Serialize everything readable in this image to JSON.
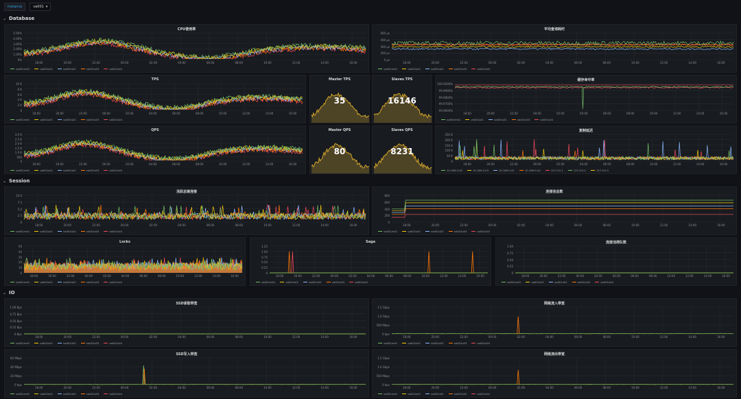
{
  "topbar": {
    "variable_label": "Instance",
    "variable_value": "va001"
  },
  "rows": [
    {
      "title": "Database",
      "top": 22
    },
    {
      "title": "Session",
      "top": 259
    },
    {
      "title": "IO",
      "top": 422
    }
  ],
  "series_colors": [
    "#73bf69",
    "#f2cc0c",
    "#8ab8ff",
    "#ff780a",
    "#f2495c"
  ],
  "x_ticks": [
    "18:00",
    "20:00",
    "22:00",
    "00:00",
    "02:00",
    "04:00",
    "06:00",
    "08:00",
    "10:00",
    "12:00",
    "14:00",
    "16:00"
  ],
  "panels": [
    {
      "id": "p1",
      "title": "CPU使用率",
      "x": 6,
      "y": 35,
      "w": 532,
      "h": 71,
      "kind": "graph",
      "shape": "wave",
      "y_ticks": [
        "5.00%",
        "4.00%",
        "3.00%",
        "2.00%",
        "1.00%",
        "0%"
      ],
      "legend": [
        "va001m01",
        "va001s01",
        "va001s02",
        "va001s03",
        "va001s04"
      ],
      "chart_data": {
        "type": "line",
        "x": [
          "18:00",
          "20:00",
          "22:00",
          "00:00",
          "02:00",
          "04:00",
          "06:00",
          "08:00",
          "10:00",
          "12:00",
          "14:00",
          "16:00"
        ],
        "ylim": [
          0,
          5
        ],
        "series": [
          {
            "name": "va001m01",
            "values": [
              2.1,
              2.3,
              2.6,
              2.7,
              1.5,
              0.7,
              0.5,
              0.9,
              1.6,
              2.0,
              1.9,
              2.0
            ]
          }
        ]
      }
    },
    {
      "id": "p2",
      "title": "平均查询耗时",
      "x": 542,
      "y": 35,
      "w": 532,
      "h": 71,
      "kind": "graph",
      "shape": "flatnoise",
      "y_ticks": [
        "600 µs",
        "400 µs",
        "300 µs",
        "200 µs",
        "0 µs"
      ],
      "legend": [
        "va001m01",
        "va001s01",
        "va001s02",
        "va001s03",
        "va001s04"
      ],
      "chart_data": {
        "type": "line",
        "ylim": [
          0,
          600
        ],
        "series": [
          {
            "name": "va001m01",
            "values": [
              400,
              420,
              390,
              410,
              400,
              395,
              405,
              410,
              400,
              415,
              400,
              405
            ]
          }
        ]
      }
    },
    {
      "id": "p3",
      "title": "TPS",
      "x": 6,
      "y": 109,
      "w": 440,
      "h": 71,
      "kind": "graph",
      "shape": "wave",
      "y_ticks": [
        "10 K",
        "8 K",
        "6 K",
        "4 K",
        "2 K",
        "0"
      ],
      "legend": [
        "va001m01",
        "va001s01",
        "va001s02",
        "va001s03",
        "va001s04"
      ],
      "chart_data": {
        "type": "line",
        "ylim": [
          0,
          10000
        ],
        "series": [
          {
            "name": "va001m01",
            "values": [
              4800,
              5600,
              6400,
              6200,
              3800,
              2100,
              1500,
              2300,
              3500,
              4400,
              4700,
              4900
            ]
          }
        ]
      }
    },
    {
      "id": "p4",
      "title": "Master TPS",
      "x": 451,
      "y": 109,
      "w": 88,
      "h": 71,
      "kind": "stat",
      "value": "35"
    },
    {
      "id": "p5",
      "title": "Slaves TPS",
      "x": 542,
      "y": 109,
      "w": 88,
      "h": 71,
      "kind": "stat",
      "value": "16146"
    },
    {
      "id": "p6",
      "title": "缓存命中率",
      "x": 634,
      "y": 109,
      "w": 440,
      "h": 71,
      "kind": "graph",
      "shape": "hit",
      "y_ticks": [
        "100.0000%",
        "99.9900%",
        "99.9800%",
        "99.9700%",
        "99.9600%"
      ],
      "legend": [
        "va001m01",
        "va001s01",
        "va001s02",
        "va001s03",
        "va001s04"
      ],
      "chart_data": {
        "type": "line",
        "ylim": [
          99.96,
          100
        ],
        "series": [
          {
            "name": "va001m01",
            "values": [
              99.998,
              99.998,
              99.998,
              99.998,
              99.998,
              99.998,
              99.998,
              99.998,
              99.998,
              99.998,
              99.998,
              99.998
            ]
          }
        ]
      }
    },
    {
      "id": "p7",
      "title": "QPS",
      "x": 6,
      "y": 183,
      "w": 440,
      "h": 71,
      "kind": "graph",
      "shape": "wave",
      "y_ticks": [
        "3.0 K",
        "2.5 K",
        "2.0 K",
        "1.5 K",
        "1.0 K",
        "500",
        "0"
      ],
      "legend": [
        "va001m01",
        "va001s01",
        "va001s02",
        "va001s03",
        "va001s04"
      ],
      "chart_data": {
        "type": "line",
        "ylim": [
          0,
          3000
        ],
        "series": [
          {
            "name": "va001m01",
            "values": [
              1400,
              1700,
              2000,
              1900,
              1100,
              500,
              300,
              600,
              1000,
              1300,
              1400,
              1500
            ]
          }
        ]
      }
    },
    {
      "id": "p8",
      "title": "Master QPS",
      "x": 451,
      "y": 183,
      "w": 88,
      "h": 71,
      "kind": "stat",
      "value": "80"
    },
    {
      "id": "p9",
      "title": "Slaves QPS",
      "x": 542,
      "y": 183,
      "w": 88,
      "h": 71,
      "kind": "stat",
      "value": "8231"
    },
    {
      "id": "p10",
      "title": "复制延迟",
      "x": 634,
      "y": 183,
      "w": 440,
      "h": 71,
      "kind": "graph",
      "shape": "spikes",
      "y_ticks": [
        "250 K",
        "200 K",
        "150 K",
        "100 K",
        "50 K",
        "0"
      ],
      "legend": [
        "10.189.0.45",
        "10.189.0.43",
        "10.189.0.41",
        "10.189.0.42",
        "127.0.0.1",
        "127.0.0.1",
        "127.0.0.1"
      ],
      "chart_data": {
        "type": "line",
        "ylim": [
          0,
          250000
        ],
        "series": [
          {
            "name": "10.189.0.45",
            "values": [
              10000,
              20000,
              180000,
              15000,
              12000,
              9000,
              16000,
              120000,
              14000,
              170000,
              11000,
              18000
            ]
          }
        ]
      }
    },
    {
      "id": "p11",
      "title": "活跃总链连接",
      "x": 6,
      "y": 272,
      "w": 532,
      "h": 71,
      "kind": "graph",
      "shape": "noise",
      "y_ticks": [
        "10.0",
        "7.5",
        "5.0",
        "2.5",
        "0"
      ],
      "legend": [
        "va001m01",
        "va001s01",
        "va001s02",
        "va001s03",
        "va001s04"
      ],
      "chart_data": {
        "type": "line",
        "ylim": [
          0,
          10
        ],
        "series": [
          {
            "name": "va001m01",
            "values": [
              2,
              3,
              2,
              4,
              2,
              3,
              2,
              3,
              2,
              4,
              3,
              2
            ]
          }
        ]
      }
    },
    {
      "id": "p12",
      "title": "连接池总数",
      "x": 542,
      "y": 272,
      "w": 532,
      "h": 71,
      "kind": "graph",
      "shape": "steps",
      "y_ticks": [
        "800",
        "600",
        "400",
        "200",
        "0"
      ],
      "legend": [
        "va001m01",
        "va001s01",
        "va001s02",
        "va001s03",
        "va001s04"
      ],
      "chart_data": {
        "type": "line",
        "ylim": [
          0,
          800
        ],
        "series": [
          {
            "name": "va001m01",
            "values": [
              650,
              650,
              650,
              650,
              650,
              650,
              650,
              650,
              650,
              650,
              650,
              650
            ]
          }
        ]
      }
    },
    {
      "id": "p13",
      "title": "Locks",
      "x": 6,
      "y": 346,
      "w": 352,
      "h": 71,
      "kind": "graph",
      "shape": "locks",
      "y_ticks": [
        "50",
        "40",
        "30",
        "20",
        "10",
        "0"
      ],
      "legend": [
        "va001m01",
        "va001s01",
        "va001s02",
        "va001s03",
        "va001s04"
      ],
      "chart_data": {
        "type": "line",
        "ylim": [
          0,
          50
        ],
        "series": [
          {
            "name": "va001m01",
            "values": [
              8,
              10,
              12,
              9,
              8,
              11,
              9,
              10,
              8,
              12,
              9,
              10
            ]
          }
        ]
      }
    },
    {
      "id": "p14",
      "title": "Saga",
      "x": 364,
      "y": 346,
      "w": 352,
      "h": 71,
      "kind": "graph",
      "shape": "saga",
      "y_ticks": [
        "1.25",
        "1.00",
        "0.75",
        "0.50",
        "0.25",
        "0"
      ],
      "legend": [
        "va001m01",
        "va001s01",
        "va001s02",
        "va001s03",
        "va001s04"
      ],
      "chart_data": {
        "type": "line",
        "ylim": [
          0,
          1.25
        ],
        "series": [
          {
            "name": "va001m01",
            "values": [
              0,
              1,
              0,
              0,
              0,
              0,
              0,
              0,
              0,
              1,
              0,
              1
            ]
          }
        ]
      }
    },
    {
      "id": "p15",
      "title": "连接池排队数",
      "x": 722,
      "y": 346,
      "w": 352,
      "h": 71,
      "kind": "graph",
      "shape": "zero",
      "y_ticks": [
        "1.00",
        "0.75",
        "0.50",
        "0.25",
        "0"
      ],
      "legend": [
        "va001m01",
        "va001s01",
        "va001s02",
        "va001s03",
        "va001s04"
      ],
      "chart_data": {
        "type": "line",
        "ylim": [
          0,
          1
        ],
        "series": [
          {
            "name": "va001m01",
            "values": [
              0,
              0,
              0,
              0,
              0,
              0,
              0,
              0,
              0,
              0,
              0,
              0
            ]
          }
        ]
      }
    },
    {
      "id": "p16",
      "title": "SSD读取带宽",
      "x": 6,
      "y": 435,
      "w": 532,
      "h": 71,
      "kind": "graph",
      "shape": "zero",
      "y_ticks": [
        "1.00 Bps",
        "0.75 Bps",
        "0.50 Bps",
        "0.25 Bps",
        "0 Bps"
      ],
      "legend": [
        "va001m01",
        "va001s01",
        "va001s02",
        "va001s03",
        "va001s04"
      ],
      "chart_data": {
        "type": "line",
        "ylim": [
          0,
          1
        ],
        "series": [
          {
            "name": "va001m01",
            "values": [
              0,
              0,
              0,
              0,
              0,
              0,
              0,
              0,
              0,
              0,
              0,
              0
            ]
          }
        ]
      }
    },
    {
      "id": "p17",
      "title": "网络流入带宽",
      "x": 542,
      "y": 435,
      "w": 532,
      "h": 71,
      "kind": "graph",
      "shape": "onespike",
      "y_ticks": [
        "1.5 Gbps",
        "1.0 Gbps",
        "500 Mbps",
        "0 bps"
      ],
      "legend": [
        "va001m01",
        "va001s01",
        "va001s02",
        "va001s03",
        "va001s04"
      ],
      "chart_data": {
        "type": "line",
        "ylim": [
          0,
          1500000000
        ],
        "series": [
          {
            "name": "va001m01",
            "values": [
              0,
              0,
              0,
              0,
              900000000,
              0,
              0,
              0,
              0,
              0,
              0,
              0
            ]
          }
        ]
      }
    },
    {
      "id": "p18",
      "title": "SSD写入带宽",
      "x": 6,
      "y": 509,
      "w": 532,
      "h": 71,
      "kind": "graph",
      "shape": "onespike",
      "y_ticks": [
        "60 Mbps",
        "40 Mbps",
        "20 Mbps",
        "0 bps"
      ],
      "legend": [
        "va001m01",
        "va001s01",
        "va001s02",
        "va001s03",
        "va001s04"
      ],
      "chart_data": {
        "type": "line",
        "ylim": [
          0,
          60000000
        ],
        "series": [
          {
            "name": "va001m01",
            "values": [
              0,
              0,
              0,
              0,
              50000000,
              0,
              0,
              0,
              0,
              0,
              0,
              0
            ]
          }
        ]
      }
    },
    {
      "id": "p19",
      "title": "网络流出带宽",
      "x": 542,
      "y": 509,
      "w": 532,
      "h": 71,
      "kind": "graph",
      "shape": "onespike",
      "y_ticks": [
        "1.5 Gbps",
        "1.0 Gbps",
        "500 Mbps",
        "0 bps"
      ],
      "legend": [
        "va001m01",
        "va001s01",
        "va001s02",
        "va001s03",
        "va001s04"
      ],
      "chart_data": {
        "type": "line",
        "ylim": [
          0,
          1500000000
        ],
        "series": [
          {
            "name": "va001m01",
            "values": [
              0,
              0,
              0,
              0,
              1100000000,
              0,
              0,
              0,
              0,
              0,
              0,
              0
            ]
          }
        ]
      }
    }
  ]
}
